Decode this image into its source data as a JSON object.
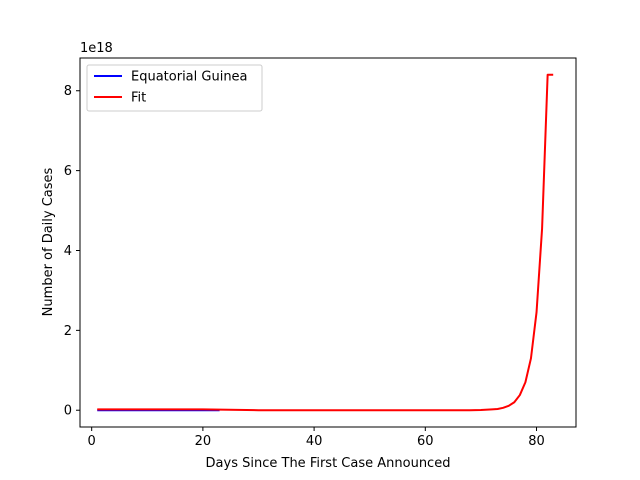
{
  "chart_data": {
    "type": "line",
    "title": "",
    "xlabel": "Days Since The First Case Announced",
    "ylabel": "Number of Daily Cases",
    "y_offset_text": "1e18",
    "y_scale": 1e+18,
    "xlim": [
      -2.1,
      87.1
    ],
    "ylim": [
      -0.42,
      8.82
    ],
    "x_ticks": [
      0,
      20,
      40,
      60,
      80
    ],
    "y_ticks": [
      0,
      2,
      4,
      6,
      8
    ],
    "grid": false,
    "legend_position": "upper-left",
    "series": [
      {
        "name": "Equatorial Guinea",
        "color": "#0000ff",
        "x": [
          1,
          5,
          10,
          15,
          20,
          23
        ],
        "y": [
          0,
          0,
          0,
          0,
          0,
          0
        ]
      },
      {
        "name": "Fit",
        "color": "#ff0000",
        "x": [
          1,
          10,
          20,
          30,
          40,
          50,
          60,
          65,
          68,
          70,
          72,
          73,
          74,
          75,
          76,
          77,
          78,
          79,
          80,
          81,
          82,
          83
        ],
        "y": [
          0.02,
          0.02,
          0.02,
          0.0,
          0.0,
          0.0,
          0.0,
          0.0,
          0.0,
          0.005,
          0.02,
          0.03,
          0.06,
          0.11,
          0.2,
          0.38,
          0.7,
          1.3,
          2.45,
          4.55,
          8.4,
          8.4
        ]
      }
    ]
  }
}
